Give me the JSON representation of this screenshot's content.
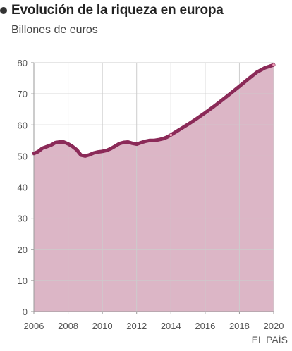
{
  "title": "Evolución de la riqueza en europa",
  "subtitle": "Billones de euros",
  "source": "EL PAÍS",
  "colors": {
    "line": "#8b2a58",
    "area": "#dcb6c6",
    "grid": "#cccccc",
    "axis": "#999999",
    "marker": "#f0a0b8"
  },
  "chart_data": {
    "type": "area",
    "title": "Evolución de la riqueza en europa",
    "ylabel": "Billones de euros",
    "xlabel": "",
    "xlim": [
      2006,
      2020
    ],
    "ylim": [
      0,
      80
    ],
    "x_ticks": [
      2006,
      2008,
      2010,
      2012,
      2014,
      2016,
      2018,
      2020
    ],
    "y_ticks": [
      0,
      10,
      20,
      30,
      40,
      50,
      60,
      70,
      80
    ],
    "grid": true,
    "series": [
      {
        "x": [
          2006.0,
          2006.25,
          2006.5,
          2006.75,
          2007.0,
          2007.25,
          2007.5,
          2007.75,
          2008.0,
          2008.25,
          2008.5,
          2008.75,
          2009.0,
          2009.25,
          2009.5,
          2009.75,
          2010.0,
          2010.25,
          2010.5,
          2010.75,
          2011.0,
          2011.25,
          2011.5,
          2011.75,
          2012.0,
          2012.25,
          2012.5,
          2012.75,
          2013.0,
          2013.25,
          2013.5,
          2013.75,
          2014.0,
          2014.5,
          2015.0,
          2015.5,
          2016.0,
          2016.5,
          2017.0,
          2017.5,
          2018.0,
          2018.5,
          2019.0,
          2019.5,
          2020.0
        ],
        "values": [
          50.8,
          51.4,
          52.5,
          53.0,
          53.5,
          54.3,
          54.5,
          54.5,
          53.9,
          53.1,
          52.0,
          50.3,
          50.0,
          50.4,
          51.0,
          51.3,
          51.5,
          51.8,
          52.4,
          53.2,
          54.0,
          54.4,
          54.5,
          54.1,
          53.8,
          54.3,
          54.7,
          55.0,
          55.0,
          55.2,
          55.5,
          56.0,
          56.8,
          58.5,
          60.2,
          62.0,
          63.9,
          65.9,
          68.0,
          70.2,
          72.4,
          74.7,
          76.9,
          78.4,
          79.3
        ]
      }
    ],
    "markers": [
      {
        "x": 2014.0,
        "value": 56.8
      },
      {
        "x": 2020.0,
        "value": 79.3
      }
    ]
  }
}
